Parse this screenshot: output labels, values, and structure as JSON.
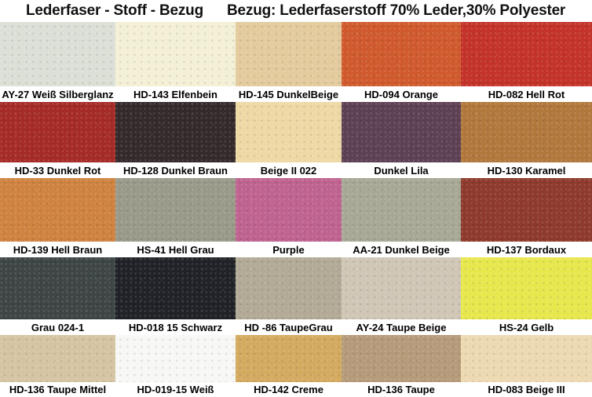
{
  "header": {
    "title_left": "Lederfaser  - Stoff - Bezug",
    "title_right": "Bezug: Lederfaserstoff 70% Leder,30% Polyester"
  },
  "grid": {
    "rows": [
      [
        {
          "label": "AY-27 Weiß Silberglanz",
          "color": "#dcdfd6"
        },
        {
          "label": "HD-143 Elfenbein",
          "color": "#f4f0d6"
        },
        {
          "label": "HD-145 DunkelBeige",
          "color": "#e3cb9d"
        },
        {
          "label": "HD-094 Orange",
          "color": "#d05a2d"
        },
        {
          "label": "HD-082 Hell Rot",
          "color": "#c43329"
        }
      ],
      [
        {
          "label": "HD-33 Dunkel Rot",
          "color": "#a52b26"
        },
        {
          "label": "HD-128 Dunkel Braun",
          "color": "#34292b"
        },
        {
          "label": "Beige II 022",
          "color": "#eed9a5"
        },
        {
          "label": "Dunkel Lila",
          "color": "#5d4054"
        },
        {
          "label": "HD-130 Karamel",
          "color": "#b1783c"
        }
      ],
      [
        {
          "label": "HD-139 Hell Braun",
          "color": "#cf8340"
        },
        {
          "label": "HS-41 Hell Grau",
          "color": "#9a9a8a"
        },
        {
          "label": "Purple",
          "color": "#bf6390"
        },
        {
          "label": "AA-21 Dunkel Beige",
          "color": "#a8a897"
        },
        {
          "label": "HD-137 Bordaux",
          "color": "#8e3a2d"
        }
      ],
      [
        {
          "label": "Grau 024-1",
          "color": "#3e4545"
        },
        {
          "label": "HD-018 15 Schwarz",
          "color": "#202228"
        },
        {
          "label": "HD -86 TaupeGrau",
          "color": "#b2aa96"
        },
        {
          "label": "AY-24 Taupe Beige",
          "color": "#d0c6b6"
        },
        {
          "label": "HS-24 Gelb",
          "color": "#e7e74d"
        }
      ],
      [
        {
          "label": "HD-136 Taupe Mittel",
          "color": "#d5c4a3"
        },
        {
          "label": "HD-019-15 Weiß",
          "color": "#f7f7f5"
        },
        {
          "label": "HD-142 Creme",
          "color": "#d3aa60"
        },
        {
          "label": "HD-136 Taupe",
          "color": "#b59b79"
        },
        {
          "label": "HD-083 Beige III",
          "color": "#edd9b1"
        }
      ]
    ]
  }
}
